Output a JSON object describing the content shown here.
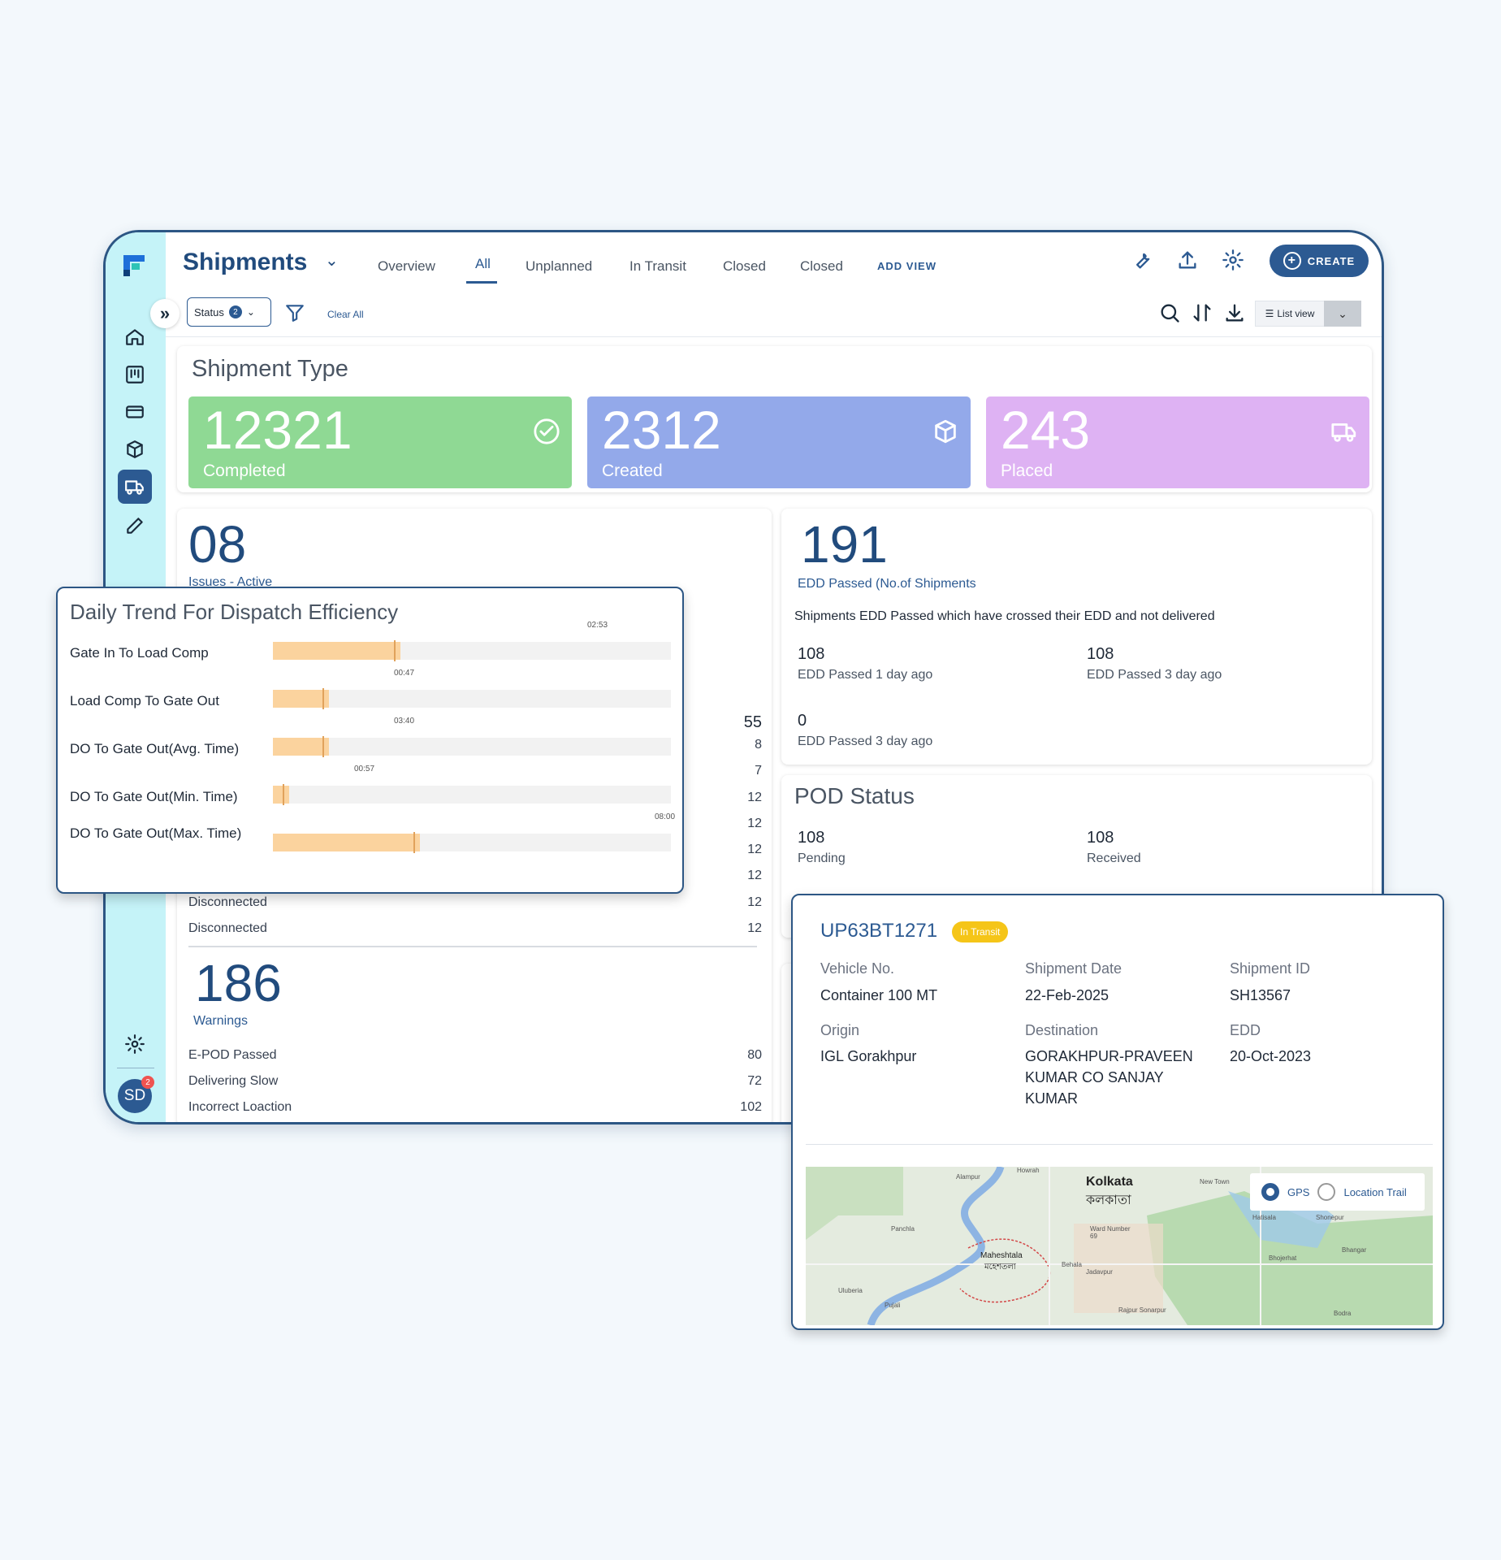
{
  "app": {
    "title": "Shipments"
  },
  "tabs": [
    {
      "label": "Overview"
    },
    {
      "label": "All"
    },
    {
      "label": "Unplanned"
    },
    {
      "label": "In Transit"
    },
    {
      "label": "Closed"
    },
    {
      "label": "Closed"
    }
  ],
  "header": {
    "add_view": "ADD VIEW",
    "create": "CREATE"
  },
  "filters": {
    "status_label": "Status",
    "status_count": "2",
    "clear_all": "Clear All",
    "view": "List view"
  },
  "user": {
    "initials": "SD",
    "notifications": "2"
  },
  "shipment_type": {
    "title": "Shipment Type",
    "tiles": [
      {
        "value": "12321",
        "label": "Completed",
        "color": "#8fd994",
        "icon": "check-circle-icon"
      },
      {
        "value": "2312",
        "label": "Created",
        "color": "#93a9ea",
        "icon": "package-icon"
      },
      {
        "value": "243",
        "label": "Placed",
        "color": "#deb2f3",
        "icon": "truck-icon"
      }
    ]
  },
  "issues": {
    "value": "08",
    "label": "Issues - Active",
    "rows": [
      {
        "label": "",
        "value": "55"
      },
      {
        "label": "",
        "value": "8"
      },
      {
        "label": "",
        "value": "7"
      },
      {
        "label": "",
        "value": "12"
      },
      {
        "label": "",
        "value": "12"
      },
      {
        "label": "",
        "value": "12"
      },
      {
        "label": "",
        "value": "12"
      },
      {
        "label": "Disconnected",
        "value": "12"
      },
      {
        "label": "Disconnected",
        "value": "12"
      }
    ]
  },
  "warnings": {
    "value": "186",
    "label": "Warnings",
    "rows": [
      {
        "label": "E-POD Passed",
        "value": "80"
      },
      {
        "label": "Delivering Slow",
        "value": "72"
      },
      {
        "label": "Incorrect Loaction",
        "value": "102"
      }
    ]
  },
  "edd": {
    "value": "191",
    "label": "EDD Passed (No.of Shipments",
    "description": "Shipments EDD Passed which have crossed their EDD and not delivered",
    "items": [
      {
        "value": "108",
        "label": "EDD Passed 1 day ago"
      },
      {
        "value": "108",
        "label": "EDD Passed 3 day ago"
      },
      {
        "value": "0",
        "label": "EDD Passed 3 day ago"
      }
    ]
  },
  "pod": {
    "title": "POD Status",
    "items": [
      {
        "value": "108",
        "label": "Pending"
      },
      {
        "value": "108",
        "label": "Received"
      }
    ]
  },
  "dispatch_chart": {
    "title": "Daily Trend For Dispatch Efficiency",
    "rows": [
      {
        "label": "Gate In To Load Comp",
        "time": "02:53",
        "fill": 0.32
      },
      {
        "label": "Load Comp To Gate Out",
        "time": "00:47",
        "fill": 0.14
      },
      {
        "label": "DO To Gate Out(Avg. Time)",
        "time": "03:40",
        "fill": 0.14
      },
      {
        "label": "DO To Gate Out(Min. Time)",
        "time": "00:57",
        "fill": 0.04
      },
      {
        "label": "DO To Gate Out(Max. Time)",
        "time": "08:00",
        "fill": 0.37
      }
    ]
  },
  "shipment_detail": {
    "vehicle": "UP63BT1271",
    "status": "In Transit",
    "fields": {
      "vehicle_no_label": "Vehicle No.",
      "vehicle_no": "Container 100 MT",
      "date_label": "Shipment Date",
      "date": "22-Feb-2025",
      "id_label": "Shipment ID",
      "id": "SH13567",
      "origin_label": "Origin",
      "origin": "IGL Gorakhpur",
      "destination_label": "Destination",
      "destination": "GORAKHPUR-PRAVEEN KUMAR CO SANJAY KUMAR",
      "edd_label": "EDD",
      "edd": "20-Oct-2023"
    },
    "map": {
      "gps": "GPS",
      "trail": "Location Trail",
      "places": [
        "Kolkata",
        "কলকাতা",
        "Maheshtala",
        "মহেশতলা",
        "Alampur",
        "Panchla",
        "Pujali",
        "Uluberia",
        "Behala",
        "Jadavpur",
        "Rajpur Sonarpur",
        "New Town",
        "Hatisala",
        "Shonepur",
        "Bhangar",
        "Bhojerhat",
        "Bodra",
        "Howrah",
        "Ward Number 69"
      ]
    }
  }
}
